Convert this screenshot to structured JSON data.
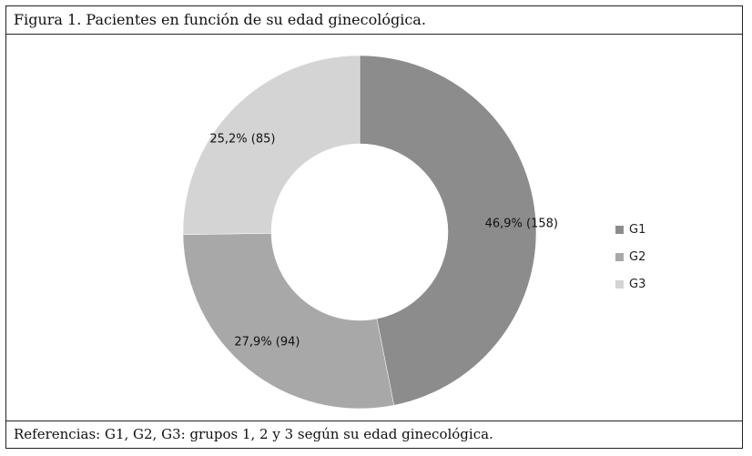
{
  "caption": "Figura 1. Pacientes en función de su edad ginecológica.",
  "footer": "Referencias: G1, G2, G3: grupos 1, 2 y 3 según su edad ginecológica.",
  "chart_data": {
    "type": "pie",
    "subtype": "donut",
    "title": "Figura 1. Pacientes en función de su edad ginecológica.",
    "categories": [
      "G1",
      "G2",
      "G3"
    ],
    "values": [
      158,
      94,
      85
    ],
    "percentages": [
      "46,9%",
      "27,9%",
      "25,2%"
    ],
    "labels": [
      "46,9% (158)",
      "27,9% (94)",
      "25,2% (85)"
    ],
    "colors": [
      "#8c8c8c",
      "#a8a8a8",
      "#d4d4d4"
    ],
    "legend_position": "right",
    "legend": [
      "G1",
      "G2",
      "G3"
    ]
  }
}
